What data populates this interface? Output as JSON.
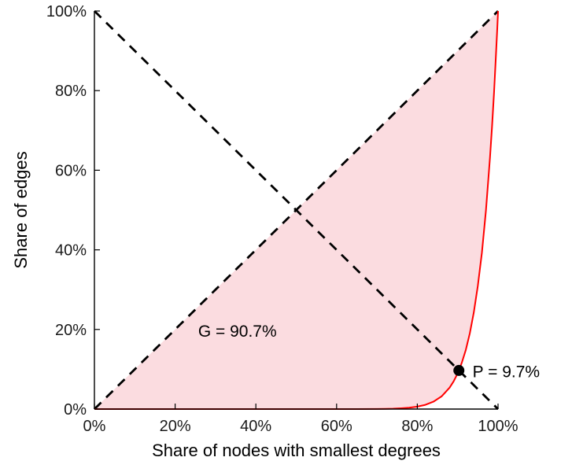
{
  "chart_data": {
    "type": "line",
    "title": "",
    "xlabel": "Share of nodes with smallest degrees",
    "ylabel": "Share of edges",
    "xlim": [
      0,
      1
    ],
    "ylim": [
      0,
      1
    ],
    "grid": false,
    "legend": false,
    "tick_values": [
      0,
      0.2,
      0.4,
      0.6,
      0.8,
      1
    ],
    "x_tick_labels": [
      "0%",
      "20%",
      "40%",
      "60%",
      "80%",
      "100%"
    ],
    "y_tick_labels": [
      "0%",
      "20%",
      "40%",
      "60%",
      "80%",
      "100%"
    ],
    "gini_coefficient": 0.907,
    "series": [
      {
        "name": "lorenz-curve",
        "type": "line",
        "color": "#ff0000",
        "width": 2,
        "points": [
          [
            0,
            0
          ],
          [
            0.1,
            0
          ],
          [
            0.2,
            0
          ],
          [
            0.3,
            0
          ],
          [
            0.4,
            0
          ],
          [
            0.5,
            1e-07
          ],
          [
            0.55,
            1.3e-06
          ],
          [
            0.6,
            8.4e-06
          ],
          [
            0.65,
            5.3e-05
          ],
          [
            0.7,
            0.000287
          ],
          [
            0.72,
            0.000545
          ],
          [
            0.74,
            0.00102
          ],
          [
            0.76,
            0.00188
          ],
          [
            0.78,
            0.0034
          ],
          [
            0.8,
            0.0061
          ],
          [
            0.82,
            0.0107
          ],
          [
            0.84,
            0.0186
          ],
          [
            0.86,
            0.0318
          ],
          [
            0.88,
            0.0538
          ],
          [
            0.89,
            0.0698
          ],
          [
            0.9,
            0.0898
          ],
          [
            0.903,
            0.097
          ],
          [
            0.91,
            0.1157
          ],
          [
            0.92,
            0.1485
          ],
          [
            0.93,
            0.1902
          ],
          [
            0.94,
            0.2429
          ],
          [
            0.95,
            0.3094
          ],
          [
            0.96,
            0.3931
          ],
          [
            0.97,
            0.4983
          ],
          [
            0.98,
            0.63
          ],
          [
            0.985,
            0.7078
          ],
          [
            0.99,
            0.7946
          ],
          [
            0.995,
            0.8917
          ],
          [
            0.998,
            0.9552
          ],
          [
            1,
            1
          ]
        ]
      },
      {
        "name": "equality-diagonal",
        "type": "line",
        "style": "dashed",
        "color": "#000000",
        "width": 2.8,
        "points": [
          [
            0,
            0
          ],
          [
            1,
            1
          ]
        ]
      },
      {
        "name": "anti-diagonal",
        "type": "line",
        "style": "dashed",
        "color": "#000000",
        "width": 2.8,
        "points": [
          [
            0,
            1
          ],
          [
            1,
            0
          ]
        ]
      }
    ],
    "area": {
      "name": "gini-area",
      "fill": "#fbdce0",
      "between": [
        "equality-diagonal",
        "lorenz-curve"
      ]
    },
    "point": {
      "name": "intersection-point",
      "x": 0.903,
      "y": 0.097,
      "color": "#000000",
      "radius": 7
    },
    "annotations": [
      {
        "id": "gini-label",
        "text": "G = 90.7%",
        "x": 0.257,
        "y": 0.196,
        "anchor": "start"
      },
      {
        "id": "p-label",
        "text": "P = 9.7%",
        "x": 0.937,
        "y": 0.095,
        "anchor": "start"
      }
    ],
    "colors": {
      "axis": "#000000",
      "text": "#1a1a1a"
    }
  }
}
